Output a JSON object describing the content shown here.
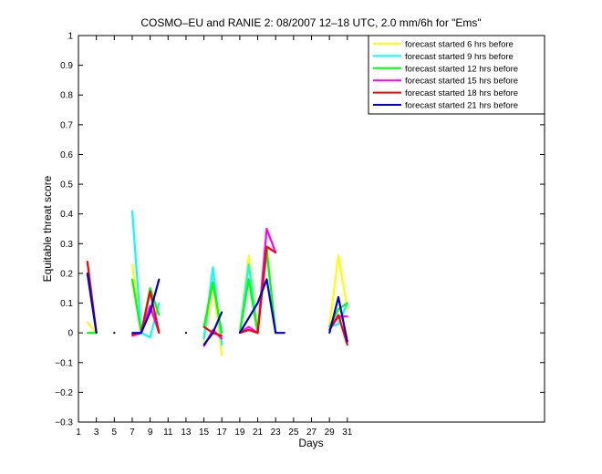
{
  "chart_data": {
    "type": "line",
    "title": "COSMO–EU and RANIE 2: 08/2007 12–18 UTC, 2.0 mm/6h for \"Ems\"",
    "xlabel": "Days",
    "ylabel": "Equitable threat score",
    "xlim": [
      1,
      53
    ],
    "ylim": [
      -0.3,
      1
    ],
    "xticks": [
      1,
      3,
      5,
      7,
      9,
      11,
      13,
      15,
      17,
      19,
      21,
      23,
      25,
      27,
      29,
      31
    ],
    "yticks": [
      -0.3,
      -0.2,
      -0.1,
      0,
      0.1,
      0.2,
      0.3,
      0.4,
      0.5,
      0.6,
      0.7,
      0.8,
      0.9,
      1
    ],
    "ytick_labels": [
      "−0.3",
      "−0.2",
      "−0.1",
      "0",
      "0.1",
      "0.2",
      "0.3",
      "0.4",
      "0.5",
      "0.6",
      "0.7",
      "0.8",
      "0.9",
      "1"
    ],
    "legend_position": "top-right",
    "grid": false,
    "isolated_points": [
      {
        "x": 5,
        "y": 0
      },
      {
        "x": 13,
        "y": 0
      }
    ],
    "series": [
      {
        "name": "forecast started 6 hrs before",
        "color": "#ffff00",
        "segments": [
          [
            [
              2,
              0.035
            ],
            [
              3,
              0
            ]
          ],
          [
            [
              7,
              0.23
            ],
            [
              8,
              0
            ],
            [
              9,
              0.08
            ],
            [
              10,
              0.01
            ]
          ],
          [
            [
              15,
              -0.03
            ],
            [
              16,
              0.17
            ],
            [
              17,
              -0.075
            ]
          ],
          [
            [
              19,
              0
            ],
            [
              20,
              0.26
            ],
            [
              21,
              0.01
            ],
            [
              22,
              0.29
            ],
            [
              23,
              0
            ]
          ],
          [
            [
              29,
              0.02
            ],
            [
              30,
              0.26
            ],
            [
              31,
              0.08
            ]
          ]
        ]
      },
      {
        "name": "forecast started 9 hrs before",
        "color": "#00ffff",
        "segments": [
          [
            [
              2,
              0.24
            ],
            [
              3,
              0
            ]
          ],
          [
            [
              7,
              0.41
            ],
            [
              8,
              0
            ],
            [
              9,
              -0.015
            ],
            [
              10,
              0.1
            ]
          ],
          [
            [
              15,
              -0.02
            ],
            [
              16,
              0.22
            ],
            [
              17,
              -0.04
            ]
          ],
          [
            [
              19,
              0
            ],
            [
              20,
              0.23
            ],
            [
              21,
              0
            ],
            [
              22,
              0.27
            ],
            [
              23,
              0
            ]
          ],
          [
            [
              29,
              0.02
            ],
            [
              30,
              0.03
            ],
            [
              31,
              0.1
            ]
          ]
        ]
      },
      {
        "name": "forecast started 12 hrs before",
        "color": "#00ff00",
        "segments": [
          [
            [
              2,
              0
            ],
            [
              3,
              0
            ]
          ],
          [
            [
              7,
              0.18
            ],
            [
              8,
              0
            ],
            [
              9,
              0.15
            ],
            [
              10,
              0.06
            ]
          ],
          [
            [
              15,
              0.02
            ],
            [
              16,
              0.17
            ],
            [
              17,
              0
            ]
          ],
          [
            [
              19,
              0
            ],
            [
              20,
              0.18
            ],
            [
              21,
              0
            ],
            [
              22,
              0.28
            ],
            [
              23,
              0
            ]
          ],
          [
            [
              29,
              0.02
            ],
            [
              30,
              0.08
            ],
            [
              31,
              0.1
            ]
          ]
        ]
      },
      {
        "name": "forecast started 15 hrs before",
        "color": "#ff00ff",
        "segments": [
          [
            [
              7,
              -0.01
            ],
            [
              8,
              0
            ],
            [
              9,
              0.09
            ],
            [
              10,
              0
            ]
          ],
          [
            [
              15,
              -0.045
            ],
            [
              16,
              0.01
            ],
            [
              17,
              -0.02
            ]
          ],
          [
            [
              19,
              0
            ],
            [
              20,
              0.02
            ],
            [
              21,
              0
            ],
            [
              22,
              0.35
            ],
            [
              23,
              0.27
            ]
          ],
          [
            [
              29,
              0.01
            ],
            [
              30,
              0.055
            ],
            [
              31,
              0.055
            ]
          ]
        ]
      },
      {
        "name": "forecast started 18 hrs before",
        "color": "#ff0000",
        "segments": [
          [
            [
              2,
              0.24
            ],
            [
              3,
              0
            ]
          ],
          [
            [
              7,
              -0.005
            ],
            [
              8,
              0
            ],
            [
              9,
              0.14
            ],
            [
              10,
              0
            ]
          ],
          [
            [
              15,
              0.02
            ],
            [
              16,
              0
            ],
            [
              17,
              -0.01
            ]
          ],
          [
            [
              19,
              0
            ],
            [
              20,
              0.01
            ],
            [
              21,
              0
            ],
            [
              22,
              0.29
            ],
            [
              23,
              0.27
            ]
          ],
          [
            [
              29,
              0.01
            ],
            [
              30,
              0.06
            ],
            [
              31,
              -0.04
            ]
          ]
        ]
      },
      {
        "name": "forecast started 21 hrs before",
        "color": "#0000cc",
        "segments": [
          [
            [
              2,
              0.2
            ],
            [
              3,
              0
            ]
          ],
          [
            [
              7,
              0
            ],
            [
              8,
              0
            ],
            [
              9,
              0.07
            ],
            [
              10,
              0.18
            ]
          ],
          [
            [
              15,
              -0.04
            ],
            [
              16,
              0
            ],
            [
              17,
              0.07
            ]
          ],
          [
            [
              19,
              0
            ],
            [
              20,
              0.05
            ],
            [
              21,
              0.1
            ],
            [
              22,
              0.18
            ],
            [
              23,
              0
            ],
            [
              24,
              0
            ]
          ],
          [
            [
              29,
              0
            ],
            [
              30,
              0.12
            ],
            [
              31,
              -0.03
            ]
          ]
        ]
      }
    ]
  }
}
